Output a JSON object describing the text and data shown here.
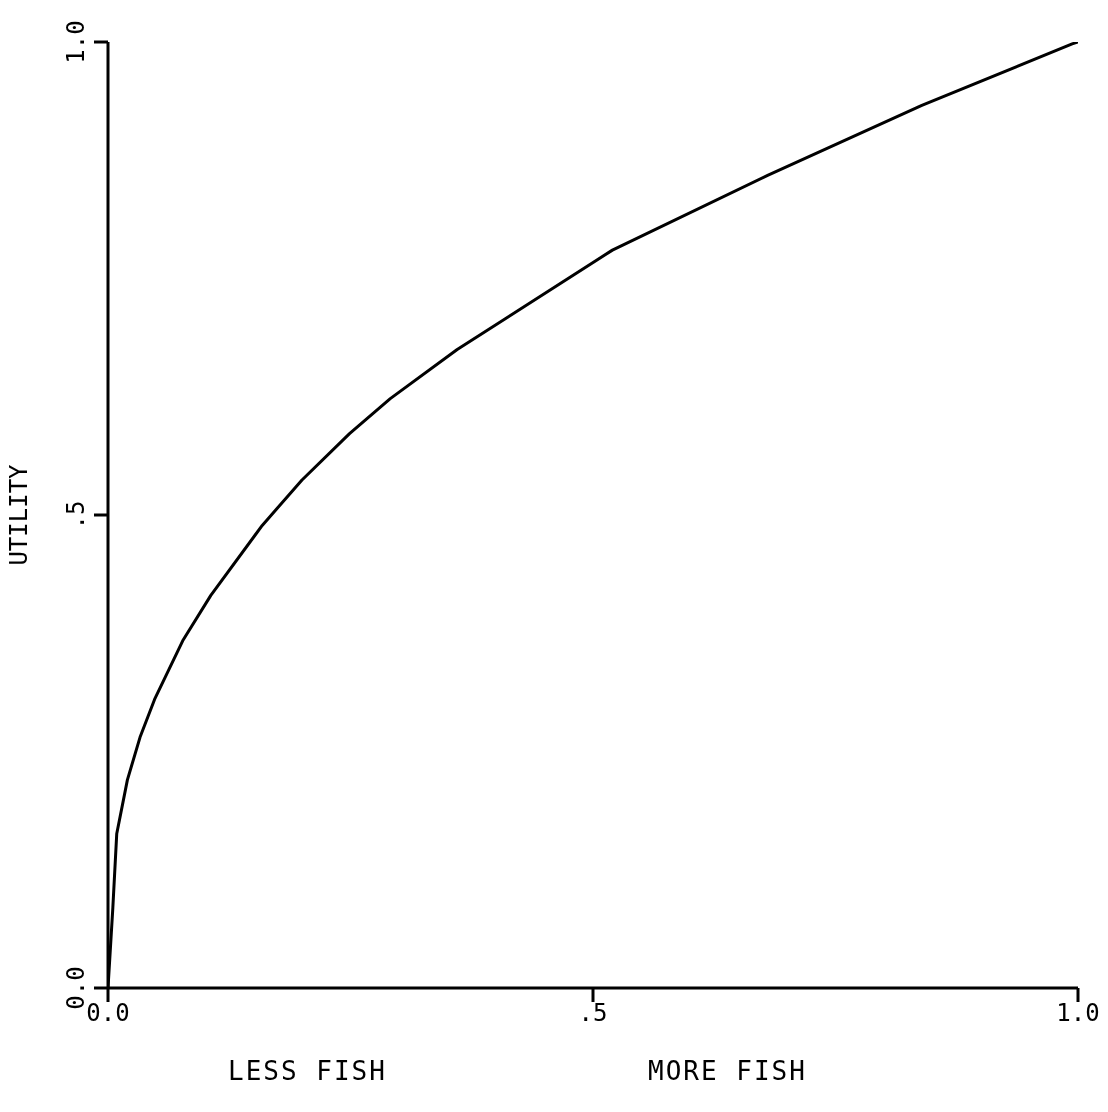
{
  "chart_data": {
    "type": "line",
    "ylabel": "UTILITY",
    "annotations": [
      "LESS FISH",
      "MORE FISH"
    ],
    "xlim": [
      0,
      1
    ],
    "ylim": [
      0,
      1
    ],
    "xticks": [
      {
        "value": 0,
        "label": "0.0"
      },
      {
        "value": 0.5,
        "label": ".5"
      },
      {
        "value": 1,
        "label": "1.0"
      }
    ],
    "yticks": [
      {
        "value": 0,
        "label": "0.0"
      },
      {
        "value": 0.5,
        "label": ".5"
      },
      {
        "value": 1,
        "label": "1.0"
      }
    ],
    "grid": false,
    "legend": false,
    "marker": "none",
    "line_style": "solid",
    "series": [
      {
        "color": "#000000",
        "x": [
          0,
          0.005,
          0.009,
          0.02,
          0.033,
          0.048,
          0.077,
          0.106,
          0.159,
          0.2,
          0.249,
          0.291,
          0.36,
          0.52,
          0.68,
          0.839,
          0.994,
          1
        ],
        "values": [
          0,
          0.085,
          0.163,
          0.22,
          0.265,
          0.305,
          0.367,
          0.415,
          0.489,
          0.537,
          0.586,
          0.623,
          0.675,
          0.78,
          0.859,
          0.933,
          0.998,
          1
        ]
      }
    ]
  }
}
